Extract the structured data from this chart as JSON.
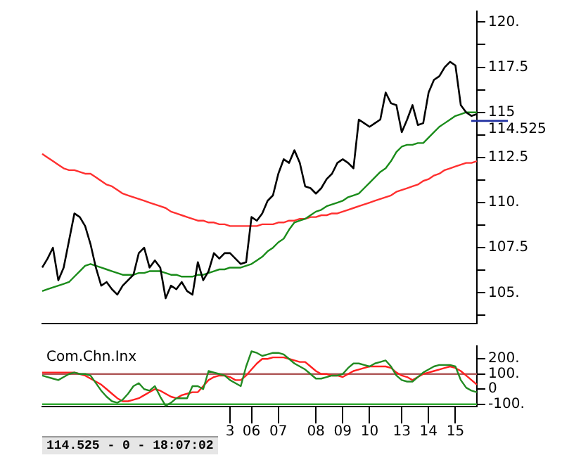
{
  "chart_data": [
    {
      "type": "line",
      "categories": [
        null,
        null,
        null,
        null,
        null,
        null,
        null,
        null,
        null,
        null,
        null,
        null,
        null,
        null,
        null,
        null,
        null,
        null,
        null,
        null,
        null,
        null,
        null,
        null,
        null,
        null,
        null,
        null,
        null,
        null,
        null,
        null,
        null,
        null,
        null,
        null,
        null,
        null,
        null,
        null,
        null,
        null,
        null,
        null,
        null,
        null,
        null,
        null,
        null,
        null,
        null,
        null,
        null,
        null,
        null,
        null,
        null,
        null,
        null,
        null,
        null,
        null,
        null,
        null,
        null,
        null,
        null,
        null,
        null,
        null,
        null,
        null,
        null,
        null,
        null,
        null,
        null,
        null,
        null,
        null,
        null,
        null
      ],
      "series": [
        {
          "color": "#000000",
          "values": [
            106.4,
            106.9,
            107.5,
            105.7,
            106.4,
            107.9,
            109.4,
            109.2,
            108.7,
            107.7,
            106.4,
            105.4,
            105.6,
            105.2,
            104.9,
            105.4,
            105.7,
            106.0,
            107.2,
            107.5,
            106.4,
            106.8,
            106.4,
            104.7,
            105.4,
            105.2,
            105.6,
            105.1,
            104.9,
            106.7,
            105.7,
            106.2,
            107.2,
            106.9,
            107.2,
            107.2,
            106.9,
            106.6,
            106.7,
            109.2,
            109.0,
            109.4,
            110.1,
            110.4,
            111.6,
            112.4,
            112.2,
            112.9,
            112.2,
            110.9,
            110.8,
            110.5,
            110.8,
            111.3,
            111.6,
            112.2,
            112.4,
            112.2,
            111.9,
            114.6,
            114.4,
            114.2,
            114.4,
            114.6,
            116.1,
            115.5,
            115.4,
            113.9,
            114.6,
            115.4,
            114.3,
            114.4,
            116.1,
            116.8,
            117.0,
            117.5,
            117.8,
            117.6,
            115.4,
            115.0,
            114.8,
            114.9
          ]
        },
        {
          "color": "#1a8c1a",
          "values": [
            105.1,
            105.2,
            105.3,
            105.4,
            105.5,
            105.6,
            105.9,
            106.2,
            106.5,
            106.6,
            106.5,
            106.4,
            106.3,
            106.2,
            106.1,
            106.0,
            106.0,
            106.0,
            106.1,
            106.1,
            106.2,
            106.2,
            106.2,
            106.1,
            106.0,
            106.0,
            105.9,
            105.9,
            105.9,
            106.0,
            106.0,
            106.1,
            106.2,
            106.3,
            106.3,
            106.4,
            106.4,
            106.4,
            106.5,
            106.6,
            106.8,
            107.0,
            107.3,
            107.5,
            107.8,
            108.0,
            108.5,
            108.9,
            109.0,
            109.1,
            109.3,
            109.5,
            109.6,
            109.8,
            109.9,
            110.0,
            110.1,
            110.3,
            110.4,
            110.5,
            110.8,
            111.1,
            111.4,
            111.7,
            111.9,
            112.3,
            112.8,
            113.1,
            113.2,
            113.2,
            113.3,
            113.3,
            113.6,
            113.9,
            114.2,
            114.4,
            114.6,
            114.8,
            114.9,
            115.0,
            115.0,
            115.0
          ]
        },
        {
          "color": "#ff3030",
          "values": [
            112.7,
            112.5,
            112.3,
            112.1,
            111.9,
            111.8,
            111.8,
            111.7,
            111.6,
            111.6,
            111.4,
            111.2,
            111.0,
            110.9,
            110.7,
            110.5,
            110.4,
            110.3,
            110.2,
            110.1,
            110.0,
            109.9,
            109.8,
            109.7,
            109.5,
            109.4,
            109.3,
            109.2,
            109.1,
            109.0,
            109.0,
            108.9,
            108.9,
            108.8,
            108.8,
            108.7,
            108.7,
            108.7,
            108.7,
            108.7,
            108.7,
            108.8,
            108.8,
            108.8,
            108.9,
            108.9,
            109.0,
            109.0,
            109.1,
            109.1,
            109.2,
            109.2,
            109.3,
            109.3,
            109.4,
            109.4,
            109.5,
            109.6,
            109.7,
            109.8,
            109.9,
            110.0,
            110.1,
            110.2,
            110.3,
            110.4,
            110.6,
            110.7,
            110.8,
            110.9,
            111.0,
            111.2,
            111.3,
            111.5,
            111.6,
            111.8,
            111.9,
            112.0,
            112.1,
            112.2,
            112.2,
            112.3
          ]
        }
      ],
      "ylim": [
        103.3,
        120.6
      ],
      "yticks": [
        {
          "value": 103.75,
          "label": null
        },
        {
          "value": 105,
          "label": "105."
        },
        {
          "value": 106.25,
          "label": null
        },
        {
          "value": 107.5,
          "label": "107.5"
        },
        {
          "value": 108.75,
          "label": null
        },
        {
          "value": 110,
          "label": "110."
        },
        {
          "value": 111.25,
          "label": null
        },
        {
          "value": 112.5,
          "label": "112.5"
        },
        {
          "value": 113.75,
          "label": null
        },
        {
          "value": 115,
          "label": "115"
        },
        {
          "value": 116.25,
          "label": null
        },
        {
          "value": 117.5,
          "label": "117.5"
        },
        {
          "value": 118.75,
          "label": null
        },
        {
          "value": 120,
          "label": "120."
        }
      ],
      "tick_labels": "y",
      "ref_lines": [
        {
          "axis": "y",
          "value": 114.525,
          "label": "114.525",
          "color": "#1f2fa0"
        }
      ]
    },
    {
      "type": "line",
      "title": "Com.Chn.Inx",
      "categories": [
        null,
        null,
        null,
        null,
        null,
        null,
        null,
        null,
        null,
        null,
        null,
        null,
        null,
        null,
        null,
        null,
        null,
        null,
        null,
        null,
        null,
        null,
        null,
        null,
        null,
        null,
        null,
        null,
        null,
        null,
        null,
        null,
        null,
        null,
        null,
        "3",
        null,
        null,
        null,
        "06",
        null,
        null,
        null,
        null,
        "07",
        null,
        null,
        null,
        null,
        null,
        null,
        "08",
        null,
        null,
        null,
        null,
        "09",
        null,
        null,
        null,
        null,
        "10",
        null,
        null,
        null,
        null,
        null,
        "13",
        null,
        null,
        null,
        null,
        "14",
        null,
        null,
        null,
        null,
        "15",
        null,
        null,
        null,
        null
      ],
      "series": [
        {
          "color": "#228b22",
          "values": [
            90,
            80,
            70,
            60,
            80,
            100,
            110,
            100,
            100,
            90,
            40,
            -10,
            -50,
            -80,
            -90,
            -70,
            -30,
            20,
            40,
            0,
            -10,
            20,
            -50,
            -110,
            -90,
            -60,
            -60,
            -60,
            20,
            20,
            0,
            120,
            110,
            100,
            90,
            60,
            40,
            20,
            150,
            250,
            240,
            220,
            230,
            240,
            240,
            230,
            200,
            170,
            150,
            130,
            100,
            70,
            70,
            80,
            90,
            90,
            100,
            140,
            170,
            170,
            160,
            150,
            170,
            180,
            190,
            150,
            90,
            60,
            50,
            50,
            80,
            110,
            130,
            150,
            160,
            160,
            160,
            150,
            60,
            10,
            -10,
            -20
          ]
        },
        {
          "color": "#ff2020",
          "values": [
            110,
            110,
            110,
            110,
            110,
            110,
            110,
            100,
            90,
            70,
            50,
            30,
            0,
            -30,
            -60,
            -80,
            -80,
            -70,
            -60,
            -40,
            -20,
            0,
            -10,
            -30,
            -50,
            -60,
            -40,
            -30,
            -20,
            -20,
            20,
            60,
            80,
            90,
            90,
            80,
            60,
            60,
            90,
            130,
            170,
            200,
            200,
            210,
            210,
            210,
            200,
            190,
            180,
            180,
            150,
            120,
            100,
            100,
            90,
            90,
            80,
            100,
            120,
            130,
            140,
            150,
            150,
            150,
            150,
            140,
            110,
            90,
            80,
            60,
            80,
            100,
            110,
            120,
            130,
            140,
            150,
            140,
            120,
            90,
            60,
            30
          ]
        }
      ],
      "ylim": [
        -115,
        285
      ],
      "yticks": [
        {
          "value": 200,
          "label": "200."
        },
        {
          "value": 100,
          "label": "100."
        },
        0,
        {
          "value": -100,
          "label": "-100."
        }
      ],
      "ref_lines": [
        {
          "axis": "y",
          "value": 100,
          "color": "#b05a5a"
        },
        {
          "axis": "y",
          "value": -100,
          "color": "#33aa33"
        }
      ],
      "annotations": [
        "114.525 - 0 - 18:07:02"
      ]
    }
  ]
}
